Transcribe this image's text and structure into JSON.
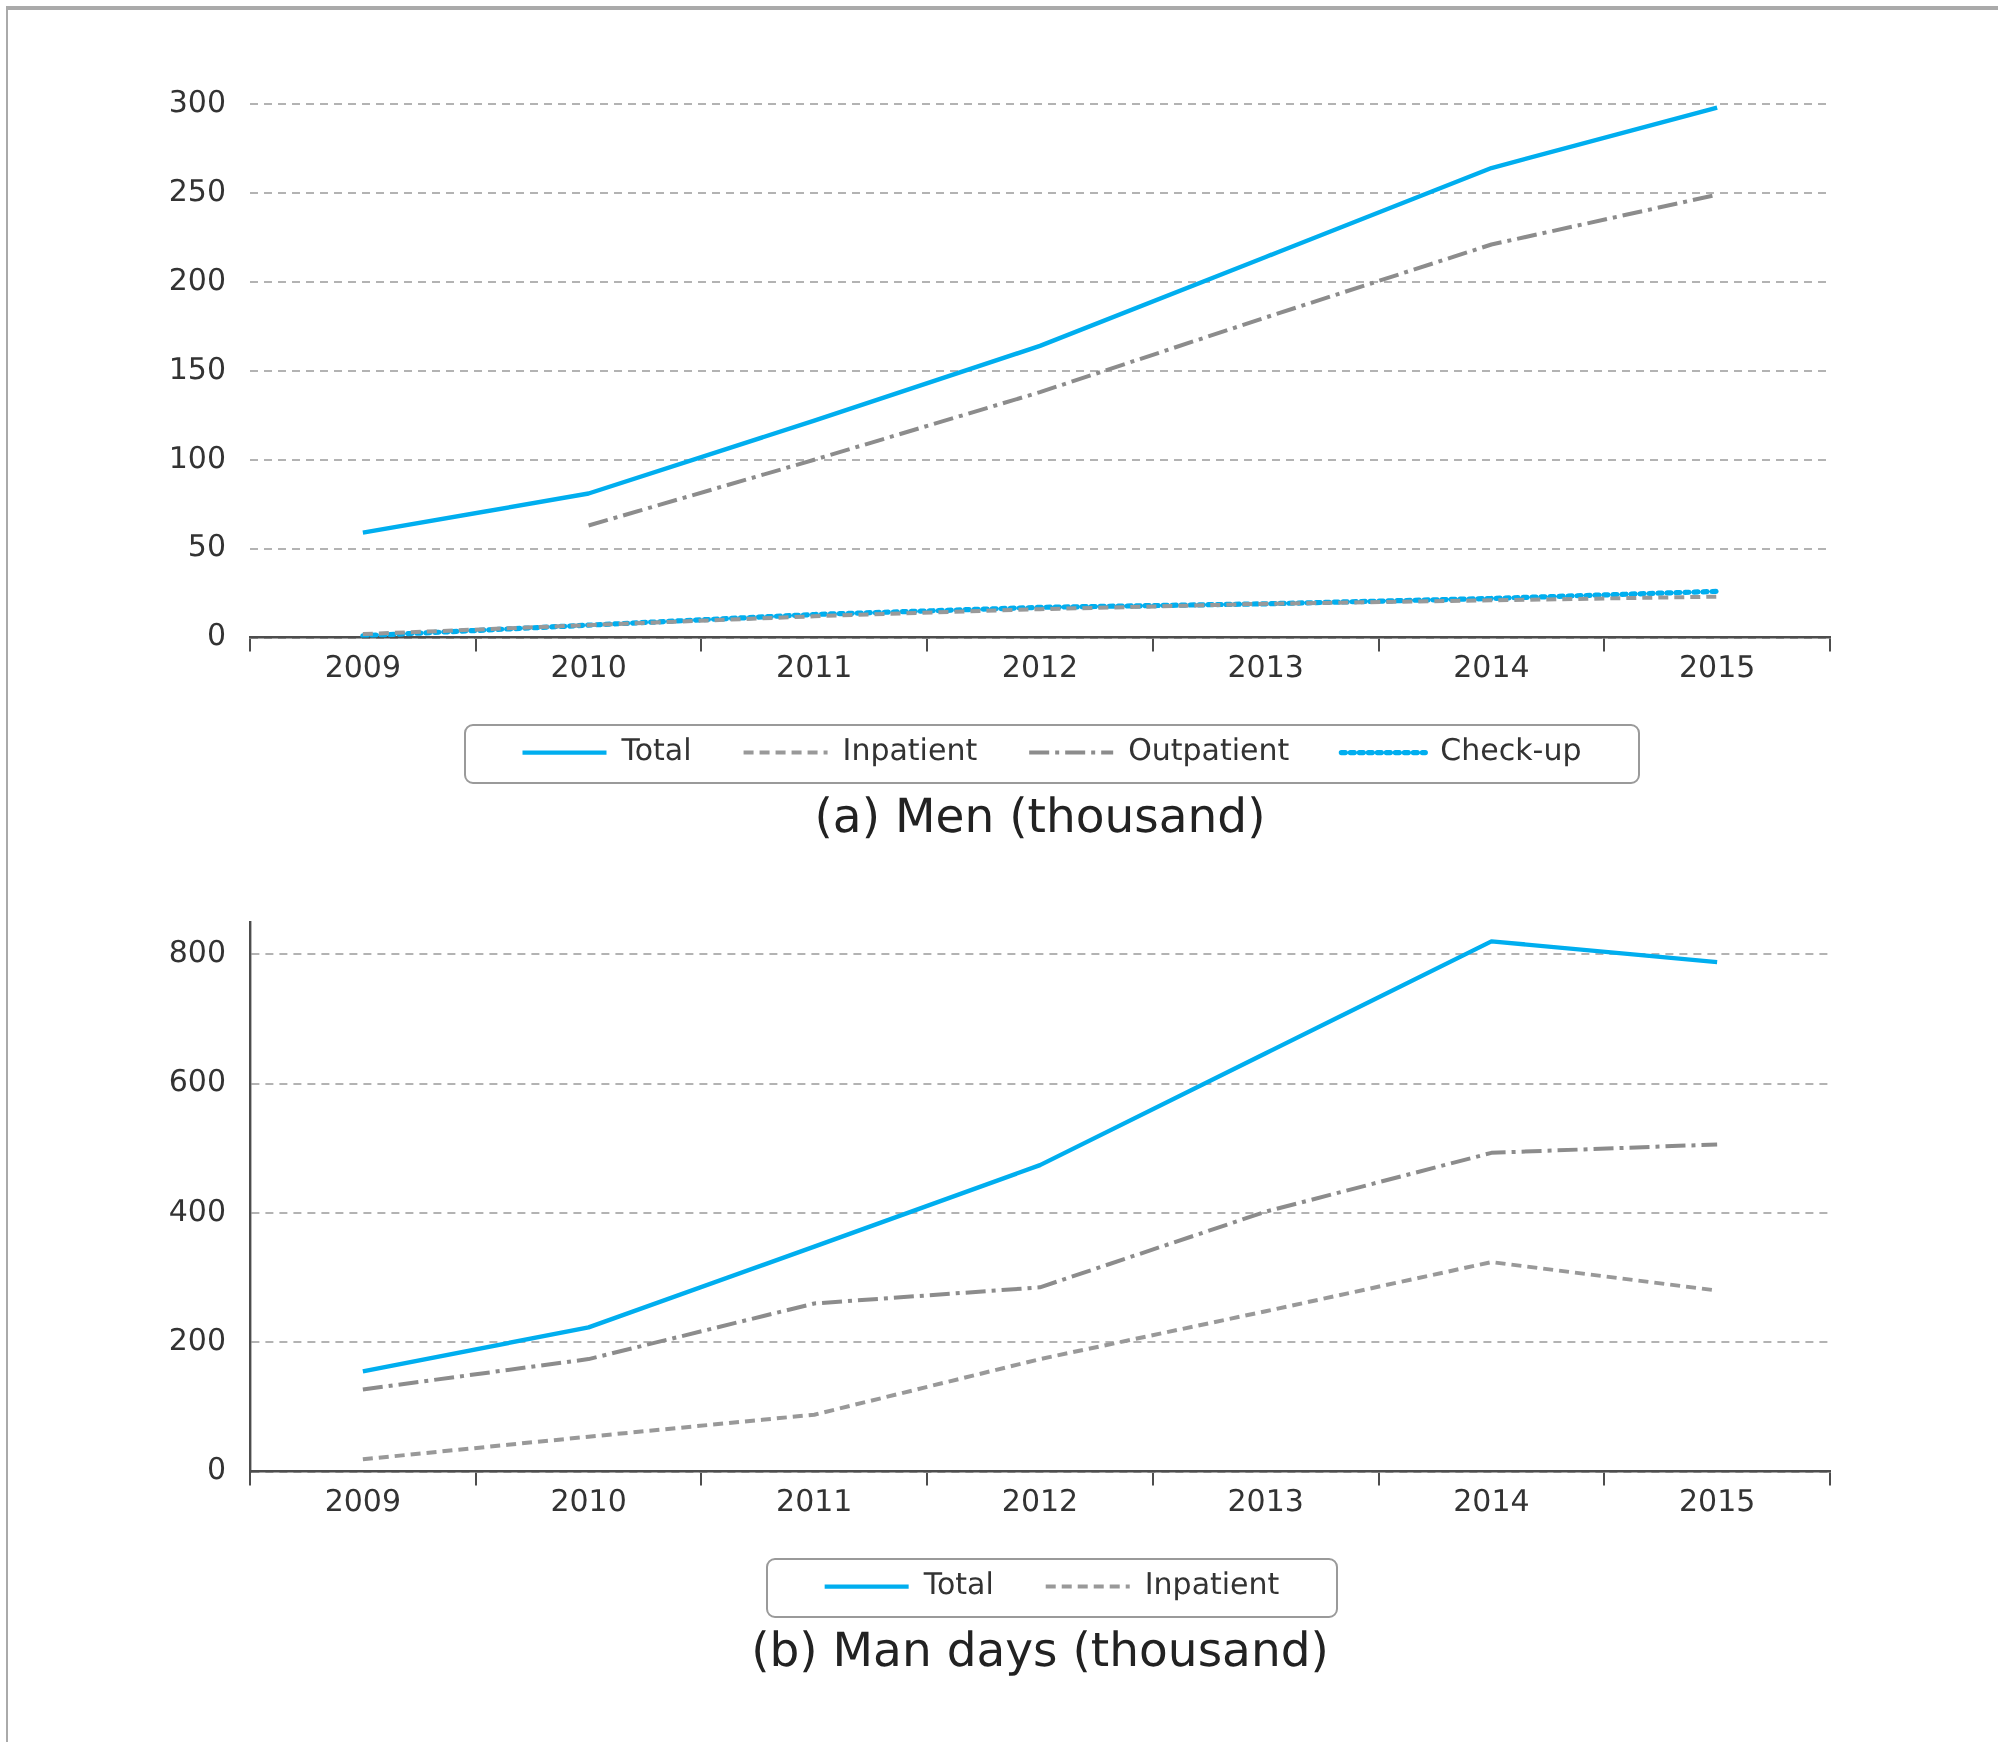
{
  "chart_data": [
    {
      "type": "line",
      "title": "(a) Men (thousand)",
      "categories": [
        "2009",
        "2010",
        "2011",
        "2012",
        "2013",
        "2014",
        "2015"
      ],
      "ylim": [
        0,
        300
      ],
      "yticks": [
        0,
        50,
        100,
        150,
        200,
        250,
        300
      ],
      "grid": "y",
      "legend": "bottom",
      "series": [
        {
          "name": "Total",
          "color": "#00aeef",
          "line_style": "solid",
          "values": [
            59,
            81,
            122,
            164,
            214,
            264,
            298
          ]
        },
        {
          "name": "Inpatient",
          "color": "#999999",
          "line_style": "dashed",
          "values": [
            2,
            7,
            12,
            16,
            19,
            21,
            23
          ]
        },
        {
          "name": "Outpatient",
          "color": "#8c8c8c",
          "line_style": "dashdot",
          "values": [
            null,
            63,
            100,
            138,
            180,
            221,
            249
          ]
        },
        {
          "name": "Check-up",
          "color": "#00aeef",
          "line_style": "dotted",
          "values": [
            1,
            7,
            13,
            17,
            19,
            22,
            26
          ]
        }
      ]
    },
    {
      "type": "line",
      "title": "(b) Man days (thousand)",
      "categories": [
        "2009",
        "2010",
        "2011",
        "2012",
        "2013",
        "2014",
        "2015"
      ],
      "ylim": [
        0,
        850
      ],
      "yticks": [
        0,
        200,
        400,
        600,
        800
      ],
      "grid": "y",
      "legend": "bottom",
      "series": [
        {
          "name": "Total",
          "color": "#00aeef",
          "line_style": "solid",
          "values": [
            155,
            223,
            348,
            474,
            647,
            820,
            788
          ]
        },
        {
          "name": "Inpatient",
          "color": "#999999",
          "line_style": "dashed",
          "values": [
            19,
            54,
            88,
            174,
            248,
            324,
            280
          ]
        },
        {
          "color": "#8c8c8c",
          "line_style": "dashdot",
          "values": [
            127,
            174,
            260,
            285,
            402,
            493,
            506
          ]
        }
      ]
    }
  ]
}
